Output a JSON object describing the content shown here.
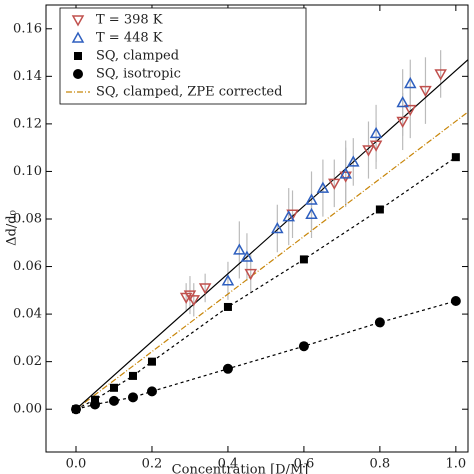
{
  "chart_data": {
    "type": "scatter",
    "x_label": "Concentration [D/M]",
    "y_label": "Δd/d₀",
    "xlim": [
      -0.079,
      1.032
    ],
    "ylim": [
      -0.018,
      0.17
    ],
    "xticks": [
      {
        "value": 0,
        "label": "0.0"
      },
      {
        "value": 0.2,
        "label": "0.2"
      },
      {
        "value": 0.4,
        "label": "0.4"
      },
      {
        "value": 0.6,
        "label": "0.6"
      },
      {
        "value": 0.8,
        "label": "0.8"
      },
      {
        "value": 1,
        "label": "1.0"
      }
    ],
    "yticks": [
      {
        "value": 0,
        "label": "0.00"
      },
      {
        "value": 0.02,
        "label": "0.02"
      },
      {
        "value": 0.04,
        "label": "0.04"
      },
      {
        "value": 0.06,
        "label": "0.06"
      },
      {
        "value": 0.08,
        "label": "0.08"
      },
      {
        "value": 0.1,
        "label": "0.10"
      },
      {
        "value": 0.12,
        "label": "0.12"
      },
      {
        "value": 0.14,
        "label": "0.14"
      },
      {
        "value": 0.16,
        "label": "0.16"
      }
    ],
    "legend": "upper left",
    "series": [
      {
        "name": "T = 398 K",
        "color": "#c0504d",
        "marker": "triangle-down",
        "line": "none",
        "x": [
          0.29,
          0.3,
          0.31,
          0.34,
          0.46,
          0.57,
          0.68,
          0.71,
          0.77,
          0.79,
          0.86,
          0.88,
          0.92,
          0.96
        ],
        "values": [
          0.047,
          0.048,
          0.046,
          0.051,
          0.057,
          0.082,
          0.095,
          0.098,
          0.109,
          0.111,
          0.121,
          0.126,
          0.134,
          0.141
        ],
        "errors": [
          0.006,
          0.008,
          0.007,
          0.006,
          0.008,
          0.01,
          0.01,
          0.012,
          0.012,
          0.01,
          0.012,
          0.012,
          0.014,
          0.01
        ]
      },
      {
        "name": "T = 448 K",
        "color": "#2e5fbf",
        "marker": "triangle-up",
        "line": "none",
        "x": [
          0.4,
          0.43,
          0.45,
          0.53,
          0.56,
          0.62,
          0.62,
          0.65,
          0.71,
          0.73,
          0.79,
          0.86,
          0.88
        ],
        "values": [
          0.054,
          0.067,
          0.064,
          0.076,
          0.081,
          0.082,
          0.088,
          0.093,
          0.099,
          0.104,
          0.116,
          0.129,
          0.137
        ],
        "errors": [
          0.008,
          0.012,
          0.01,
          0.01,
          0.012,
          0.01,
          0.012,
          0.012,
          0.014,
          0.01,
          0.012,
          0.014,
          0.01
        ]
      },
      {
        "name": "SQ, clamped",
        "color": "#000000",
        "marker": "square",
        "line": "dashed",
        "x": [
          0,
          0.05,
          0.1,
          0.15,
          0.2,
          0.4,
          0.6,
          0.8,
          1.0
        ],
        "values": [
          0,
          0.004,
          0.009,
          0.014,
          0.02,
          0.043,
          0.063,
          0.084,
          0.106
        ]
      },
      {
        "name": "SQ, isotropic",
        "color": "#000000",
        "marker": "circle",
        "line": "dashed",
        "x": [
          0,
          0.05,
          0.1,
          0.15,
          0.2,
          0.4,
          0.6,
          0.8,
          1.0
        ],
        "values": [
          0,
          0.002,
          0.0035,
          0.005,
          0.0075,
          0.017,
          0.0265,
          0.0365,
          0.0455
        ]
      },
      {
        "name": "SQ, clamped, ZPE corrected",
        "color": "#c8860a",
        "marker": "none",
        "line": "dashdot",
        "x": [
          0,
          1.032
        ],
        "values": [
          0,
          0.125
        ]
      },
      {
        "color": "#000000",
        "marker": "none",
        "line": "solid",
        "x": [
          0,
          1.032
        ],
        "values": [
          0,
          0.147
        ]
      }
    ]
  }
}
